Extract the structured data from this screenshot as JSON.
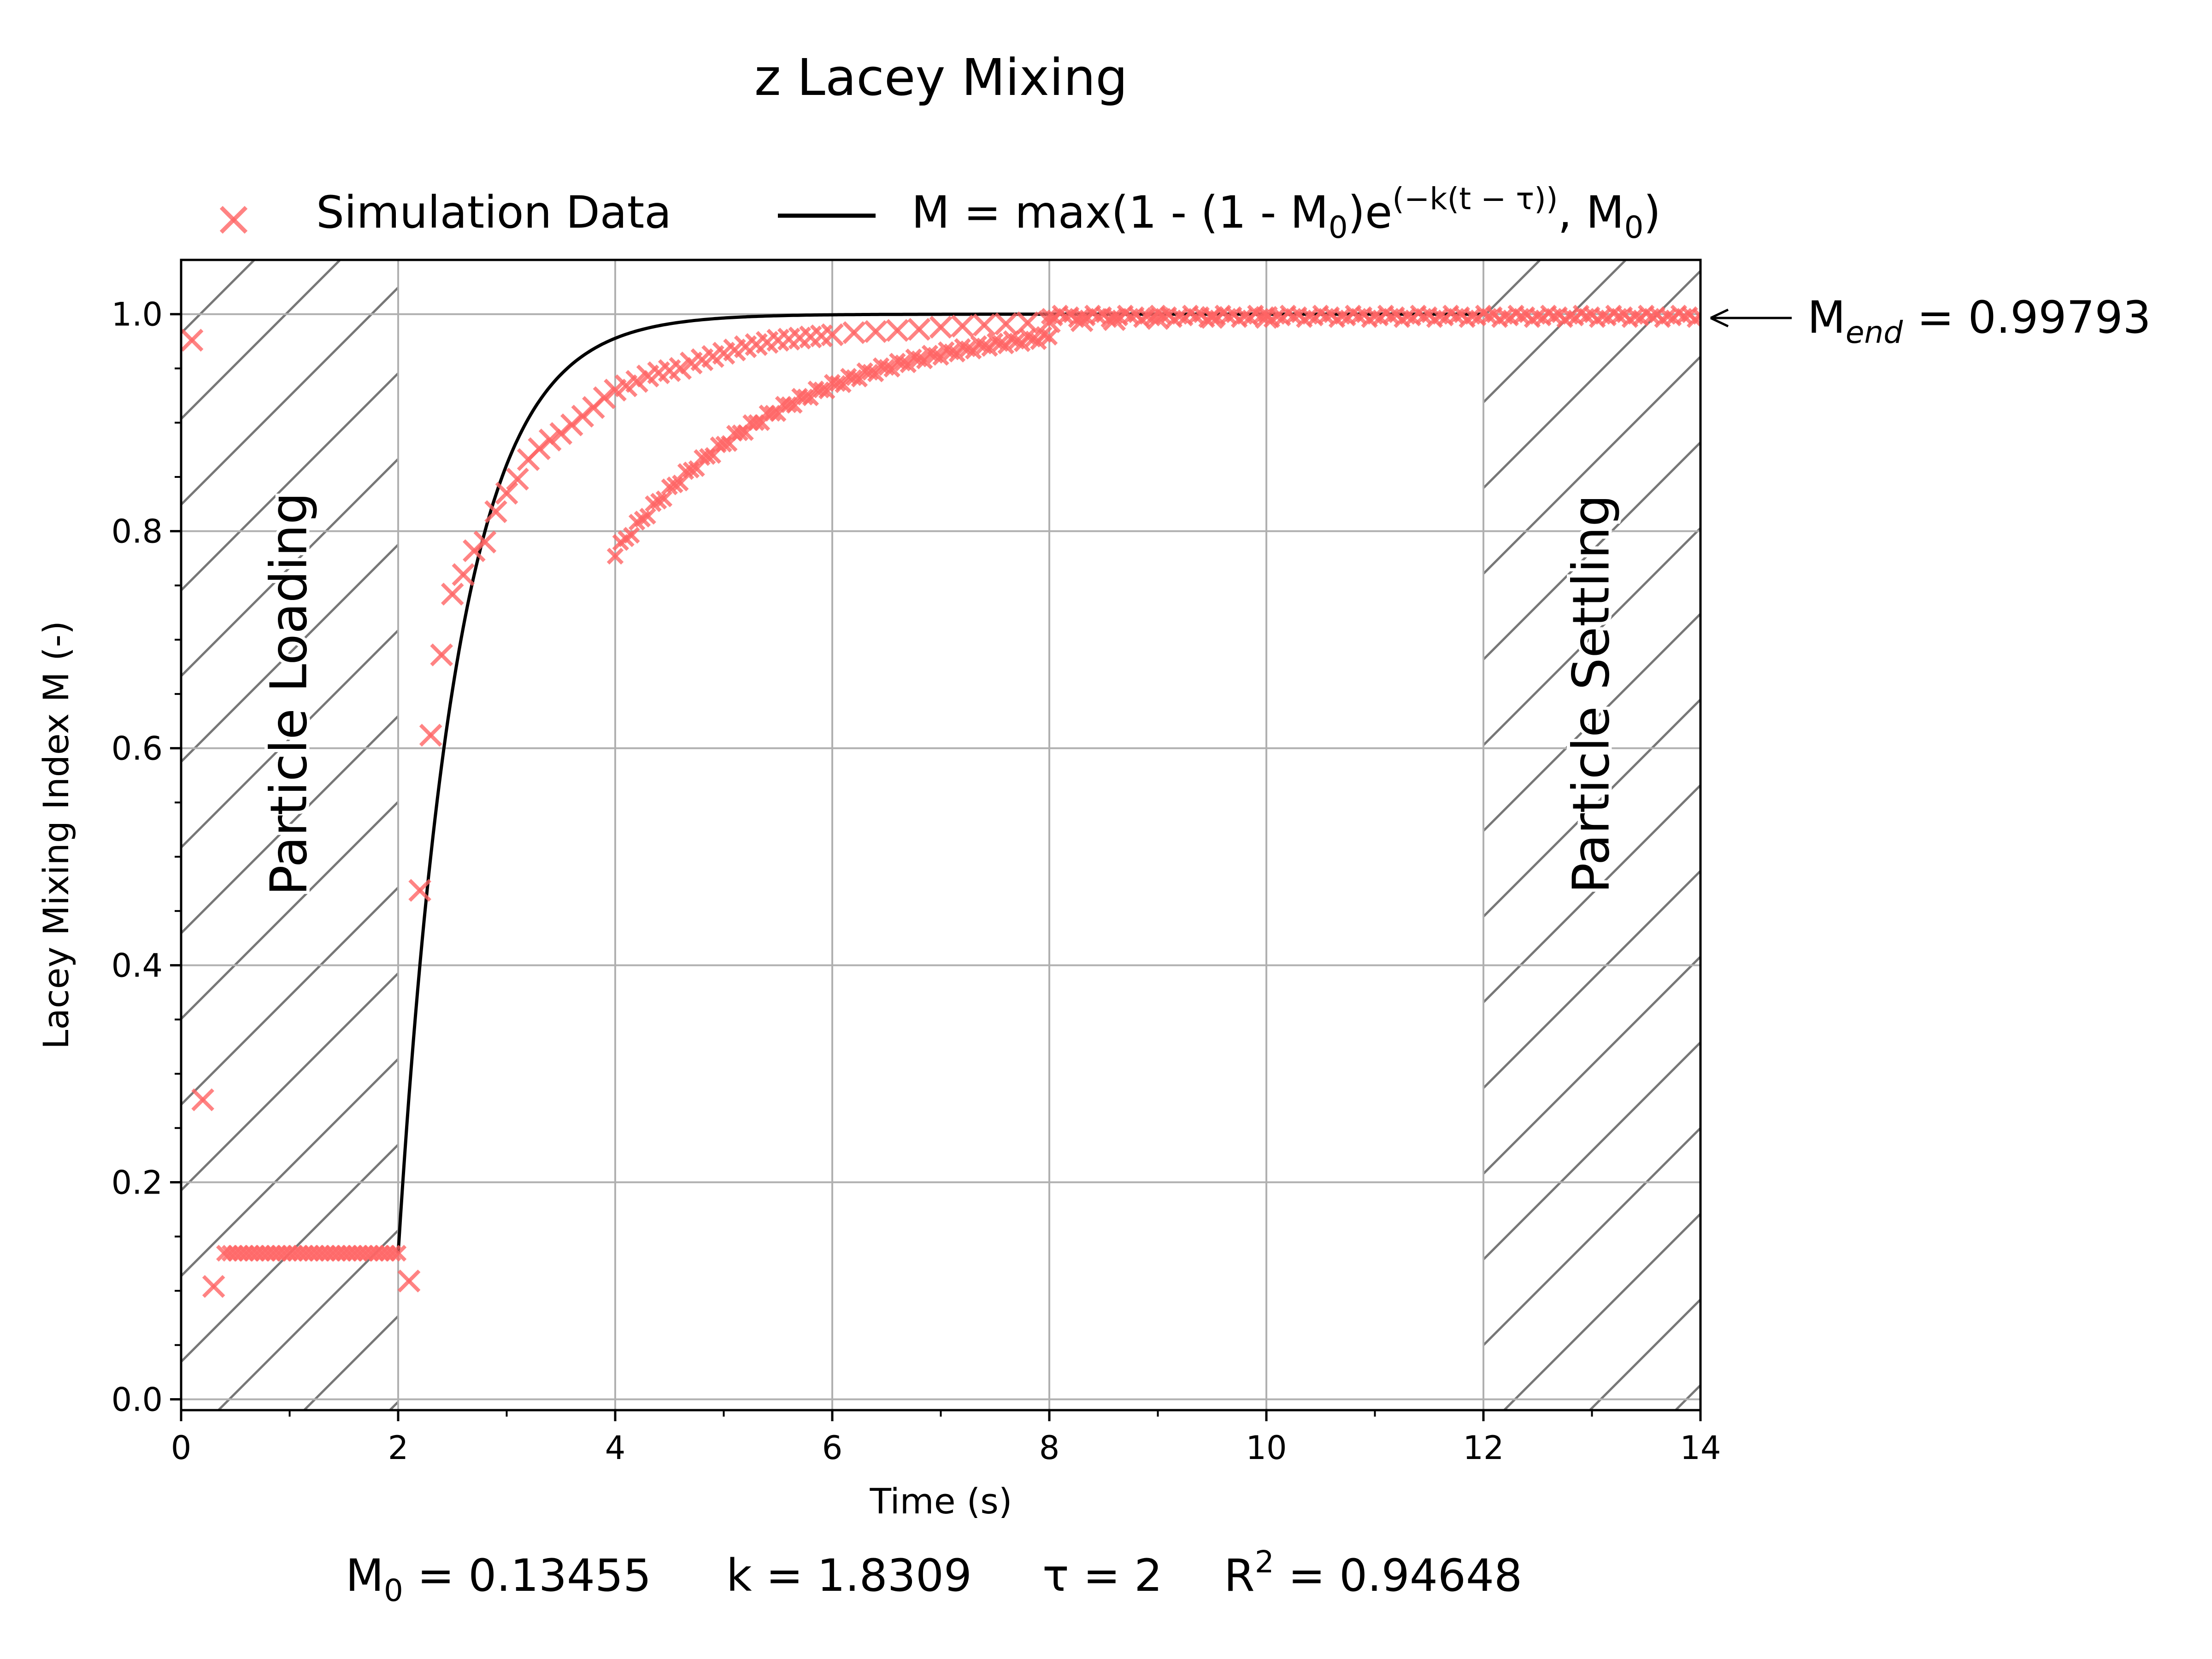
{
  "chart_data": {
    "type": "scatter",
    "title": "z Lacey Mixing",
    "xlabel": "Time (s)",
    "ylabel": "Lacey Mixing Index M (-)",
    "xlim": [
      0,
      14
    ],
    "ylim": [
      -0.01,
      1.05
    ],
    "xticks": [
      "0",
      "2",
      "4",
      "6",
      "8",
      "10",
      "12",
      "14"
    ],
    "yticks": [
      "0.0",
      "0.2",
      "0.4",
      "0.6",
      "0.8",
      "1.0"
    ],
    "grid": true,
    "legend_placement": "top, above plot",
    "shaded_regions": [
      {
        "label": "Particle Loading",
        "x": [
          0,
          2
        ]
      },
      {
        "label": "Particle Settling",
        "x": [
          12,
          14
        ]
      }
    ],
    "colors": {
      "simulation": "#ff6464",
      "fit": "#000000",
      "hatch": "#777777",
      "grid": "#b0b0b0"
    },
    "series": [
      {
        "name": "Simulation Data",
        "marker": "x",
        "early_points": [
          [
            0.1,
            0.976
          ],
          [
            0.2,
            0.276
          ],
          [
            0.3,
            0.104
          ]
        ],
        "plateau": {
          "x_start": 0.4,
          "x_end": 2.0,
          "step": 0.05,
          "y": 0.1346
        },
        "ramp_points": [
          [
            2.1,
            0.109
          ],
          [
            2.2,
            0.469
          ],
          [
            2.3,
            0.612
          ],
          [
            2.4,
            0.686
          ],
          [
            2.5,
            0.742
          ],
          [
            2.6,
            0.76
          ],
          [
            2.7,
            0.782
          ],
          [
            2.8,
            0.79
          ],
          [
            2.9,
            0.818
          ],
          [
            3.0,
            0.835
          ],
          [
            3.1,
            0.848
          ],
          [
            3.2,
            0.866
          ],
          [
            3.3,
            0.876
          ],
          [
            3.4,
            0.884
          ],
          [
            3.5,
            0.89
          ],
          [
            3.6,
            0.898
          ],
          [
            3.7,
            0.906
          ],
          [
            3.8,
            0.914
          ],
          [
            3.9,
            0.923
          ],
          [
            4.0,
            0.93
          ],
          [
            4.1,
            0.934
          ],
          [
            4.2,
            0.938
          ],
          [
            4.3,
            0.943
          ],
          [
            4.4,
            0.946
          ],
          [
            4.5,
            0.948
          ],
          [
            4.6,
            0.95
          ],
          [
            4.7,
            0.955
          ],
          [
            4.8,
            0.958
          ],
          [
            4.9,
            0.961
          ],
          [
            5.0,
            0.964
          ],
          [
            5.1,
            0.967
          ],
          [
            5.2,
            0.97
          ],
          [
            5.3,
            0.972
          ],
          [
            5.4,
            0.974
          ],
          [
            5.5,
            0.976
          ],
          [
            5.6,
            0.977
          ],
          [
            5.7,
            0.978
          ],
          [
            5.8,
            0.979
          ],
          [
            5.9,
            0.98
          ],
          [
            6.0,
            0.981
          ],
          [
            6.2,
            0.983
          ],
          [
            6.4,
            0.984
          ],
          [
            6.6,
            0.985
          ],
          [
            6.8,
            0.986
          ],
          [
            7.0,
            0.988
          ],
          [
            7.2,
            0.989
          ],
          [
            7.4,
            0.99
          ],
          [
            7.6,
            0.991
          ],
          [
            7.8,
            0.992
          ],
          [
            8.0,
            0.993
          ],
          [
            8.3,
            0.994
          ],
          [
            8.6,
            0.995
          ],
          [
            9.0,
            0.996
          ],
          [
            9.5,
            0.997
          ],
          [
            10.0,
            0.997
          ]
        ],
        "tail": {
          "x_start": 8.0,
          "x_end": 14.0,
          "step": 0.05,
          "y_center": 0.998,
          "amplitude": 0.003
        }
      },
      {
        "name": "M = max(1 - (1 - M0)e^(-k(t - τ)), M0)",
        "type": "line",
        "function": {
          "M0": 0.13455,
          "k": 1.8309,
          "tau": 2,
          "t_start": 2.0,
          "t_end": 12.0
        }
      }
    ],
    "legend": {
      "scatter_label": "Simulation Data",
      "line_prefix": "M = max(1 - (1 - M",
      "line_sub0": "0",
      "line_mid": ")e",
      "line_sup": "(−k(t − τ))",
      "line_suffix_a": ", M",
      "line_sub1": "0",
      "line_suffix_b": ")"
    },
    "annotation": {
      "symbol": "M",
      "subscript": "end",
      "text": " = 0.99793"
    },
    "fit_params": {
      "m0_symbol": "M",
      "m0_sub": "0",
      "m0_value": " = 0.13455",
      "k_text": "k = 1.8309",
      "tau_text": "τ = 2",
      "r2_symbol": "R",
      "r2_sup": "2",
      "r2_value": " = 0.94648"
    }
  }
}
